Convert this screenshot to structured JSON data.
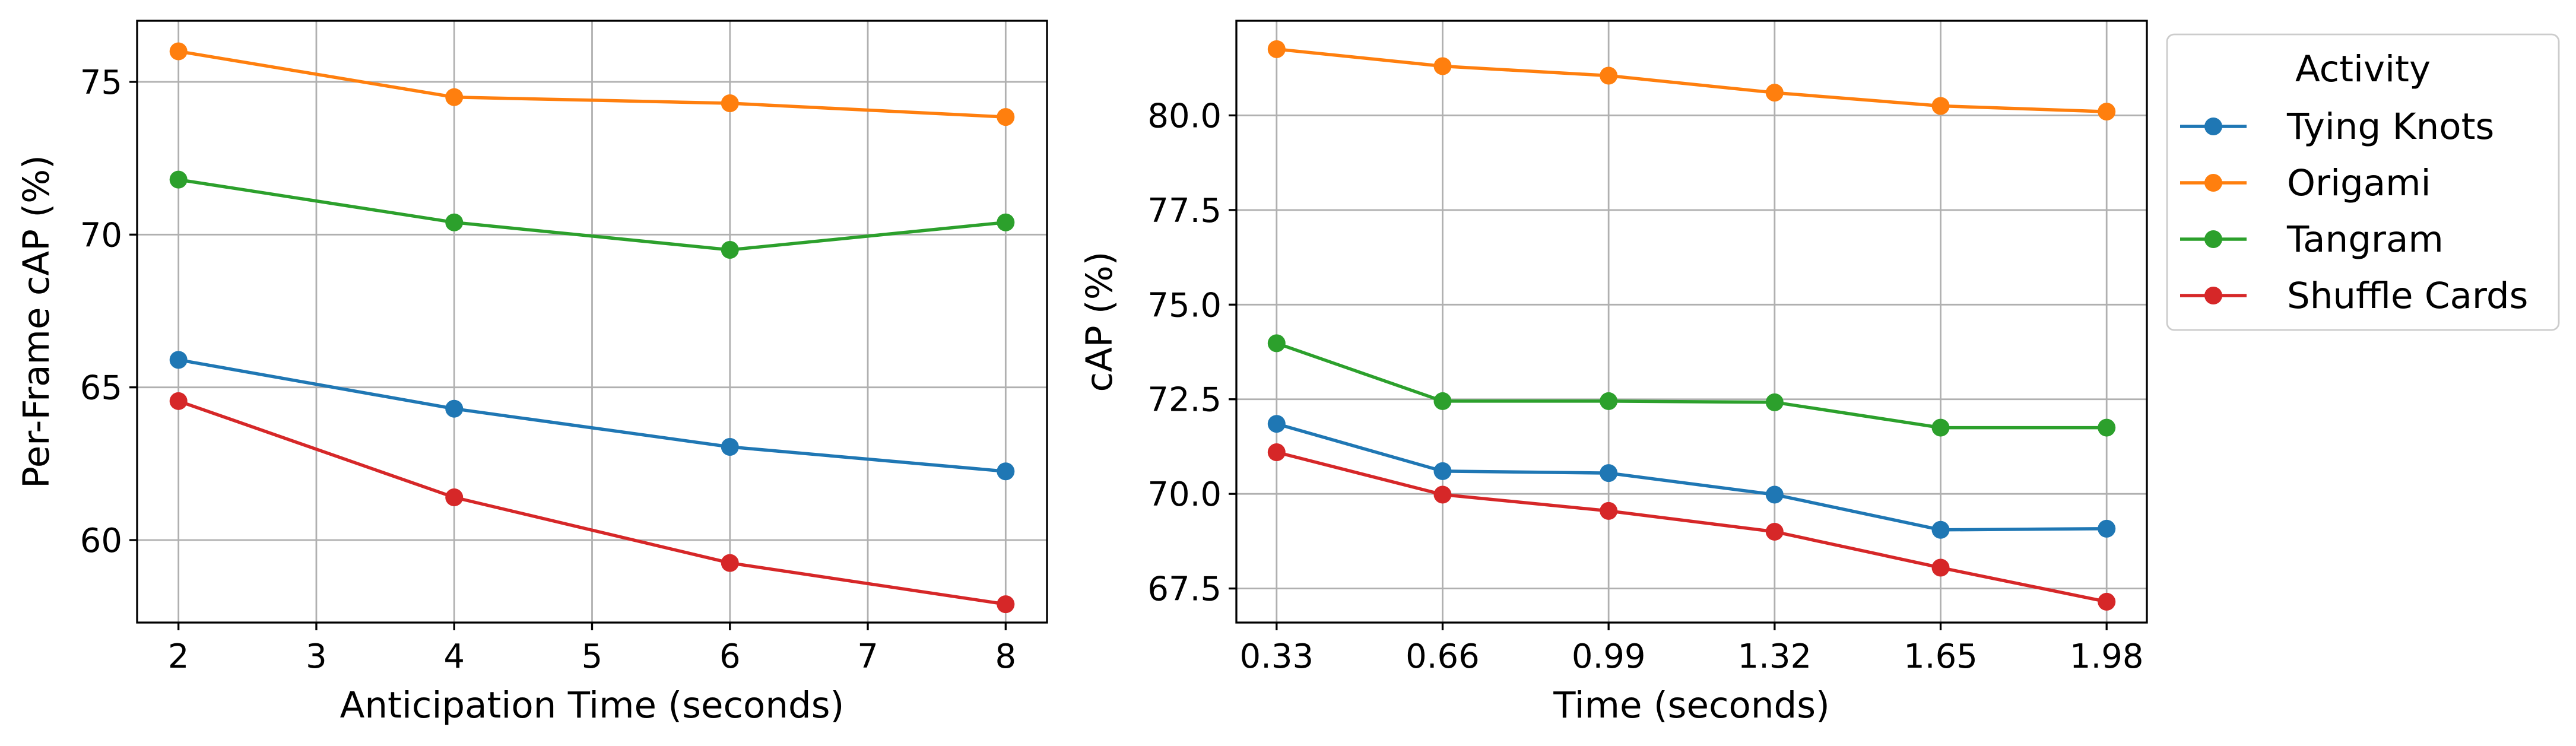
{
  "chart_data": [
    {
      "type": "line",
      "title": "",
      "xlabel": "Anticipation Time (seconds)",
      "ylabel": "Per-Frame cAP (%)",
      "xlim": [
        1.7,
        8.3
      ],
      "ylim": [
        57.3,
        77.0
      ],
      "xticks": [
        2,
        3,
        4,
        5,
        6,
        7,
        8
      ],
      "xtick_labels": [
        "2",
        "3",
        "4",
        "5",
        "6",
        "7",
        "8"
      ],
      "yticks": [
        60,
        65,
        70,
        75
      ],
      "ytick_labels": [
        "60",
        "65",
        "70",
        "75"
      ],
      "grid": true,
      "x": [
        2,
        4,
        6,
        8
      ],
      "series": [
        {
          "name": "Tying Knots",
          "color": "#1f77b4",
          "values": [
            65.9,
            64.3,
            63.05,
            62.25
          ]
        },
        {
          "name": "Origami",
          "color": "#ff7f0e",
          "values": [
            76.0,
            74.5,
            74.3,
            73.85
          ]
        },
        {
          "name": "Tangram",
          "color": "#2ca02c",
          "values": [
            71.8,
            70.4,
            69.5,
            70.4
          ]
        },
        {
          "name": "Shuffle Cards",
          "color": "#d62728",
          "values": [
            64.55,
            61.4,
            59.25,
            57.9
          ]
        }
      ]
    },
    {
      "type": "line",
      "title": "",
      "xlabel": "Time (seconds)",
      "ylabel": "cAP (%)",
      "xlim": [
        0.25,
        2.06
      ],
      "ylim": [
        66.6,
        82.5
      ],
      "xticks": [
        0.33,
        0.66,
        0.99,
        1.32,
        1.65,
        1.98
      ],
      "xtick_labels": [
        "0.33",
        "0.66",
        "0.99",
        "1.32",
        "1.65",
        "1.98"
      ],
      "yticks": [
        67.5,
        70.0,
        72.5,
        75.0,
        77.5,
        80.0
      ],
      "ytick_labels": [
        "67.5",
        "70.0",
        "72.5",
        "75.0",
        "77.5",
        "80.0"
      ],
      "grid": true,
      "x": [
        0.33,
        0.66,
        0.99,
        1.32,
        1.65,
        1.98
      ],
      "series": [
        {
          "name": "Tying Knots",
          "color": "#1f77b4",
          "values": [
            71.85,
            70.6,
            70.55,
            69.98,
            69.05,
            69.08
          ]
        },
        {
          "name": "Origami",
          "color": "#ff7f0e",
          "values": [
            81.75,
            81.3,
            81.05,
            80.6,
            80.25,
            80.1
          ]
        },
        {
          "name": "Tangram",
          "color": "#2ca02c",
          "values": [
            73.98,
            72.45,
            72.45,
            72.42,
            71.75,
            71.75
          ]
        },
        {
          "name": "Shuffle Cards",
          "color": "#d62728",
          "values": [
            71.1,
            69.98,
            69.55,
            69.0,
            68.05,
            67.15
          ]
        }
      ]
    }
  ],
  "legend": {
    "title": "Activity",
    "placement": "outside-right",
    "entries": [
      {
        "label": "Tying Knots",
        "color": "#1f77b4"
      },
      {
        "label": "Origami",
        "color": "#ff7f0e"
      },
      {
        "label": "Tangram",
        "color": "#2ca02c"
      },
      {
        "label": "Shuffle Cards",
        "color": "#d62728"
      }
    ]
  }
}
